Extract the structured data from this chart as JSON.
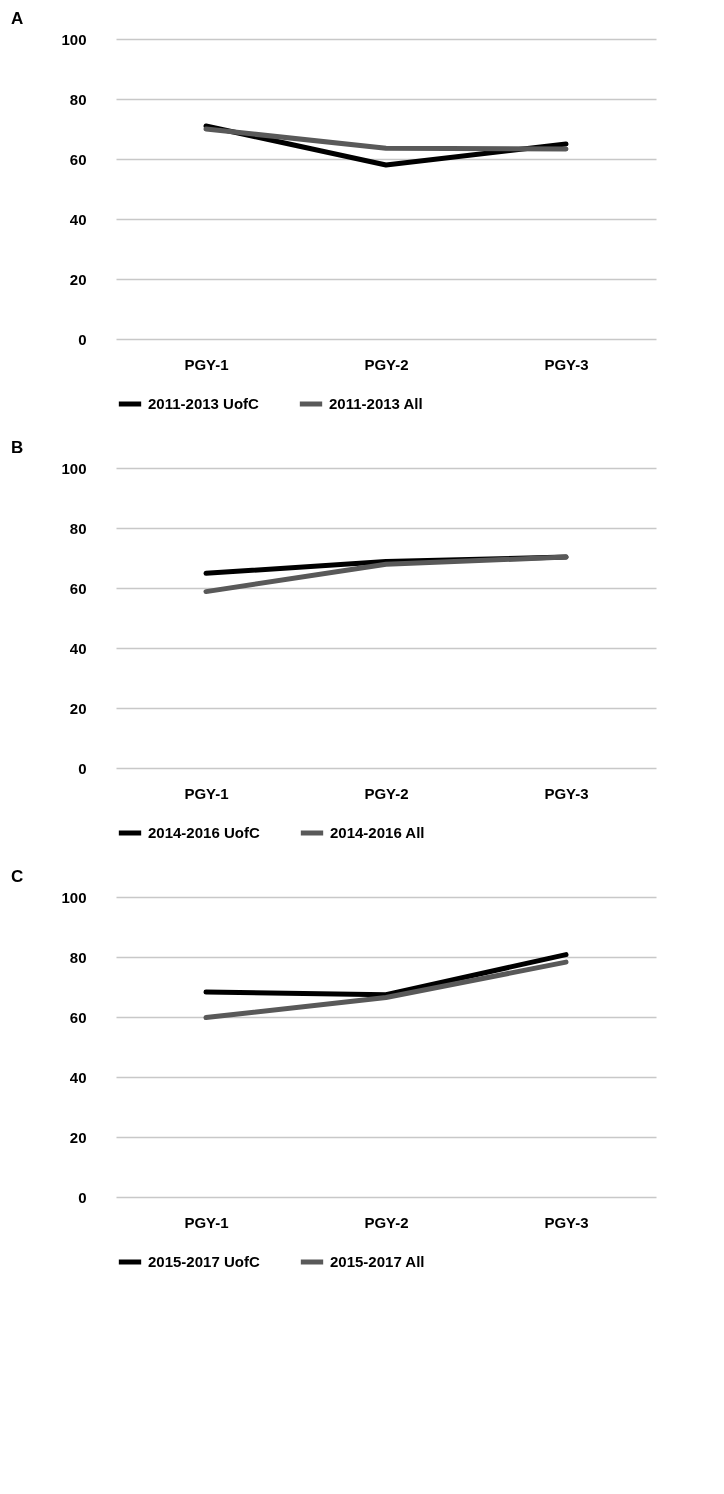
{
  "chart_data": [
    {
      "type": "line",
      "title": "A",
      "categories": [
        "PGY-1",
        "PGY-2",
        "PGY-3"
      ],
      "ylim": [
        0,
        100
      ],
      "yticks": [
        0,
        20,
        40,
        60,
        80,
        100
      ],
      "grid": "y",
      "legend": "bottom",
      "series": [
        {
          "name": "2011-2013 UofC",
          "color": "#000000",
          "values": [
            71,
            58,
            65
          ]
        },
        {
          "name": "2011-2013 All",
          "color": "#595959",
          "values": [
            70,
            63.6,
            63.3
          ]
        }
      ]
    },
    {
      "type": "line",
      "title": "B",
      "categories": [
        "PGY-1",
        "PGY-2",
        "PGY-3"
      ],
      "ylim": [
        0,
        100
      ],
      "yticks": [
        0,
        20,
        40,
        60,
        80,
        100
      ],
      "grid": "y",
      "legend": "bottom",
      "series": [
        {
          "name": "2014-2016 UofC",
          "color": "#000000",
          "values": [
            64.9,
            68.8,
            70.3
          ]
        },
        {
          "name": "2014-2016 All",
          "color": "#595959",
          "values": [
            58.8,
            67.9,
            70.3
          ]
        }
      ]
    },
    {
      "type": "line",
      "title": "C",
      "categories": [
        "PGY-1",
        "PGY-2",
        "PGY-3"
      ],
      "ylim": [
        0,
        100
      ],
      "yticks": [
        0,
        20,
        40,
        60,
        80,
        100
      ],
      "grid": "y",
      "legend": "bottom",
      "series": [
        {
          "name": "2015-2017 UofC",
          "color": "#000000",
          "values": [
            68.3,
            67.4,
            80.8
          ]
        },
        {
          "name": "2015-2017 All",
          "color": "#595959",
          "values": [
            59.8,
            66.5,
            78.3
          ]
        }
      ]
    }
  ]
}
